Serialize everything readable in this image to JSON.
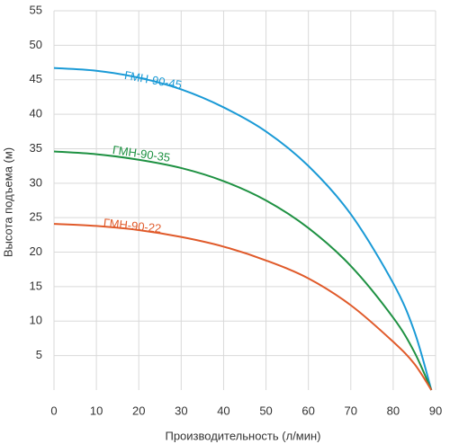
{
  "chart_data": {
    "type": "line",
    "x_label": "Производительность (л/мин)",
    "y_label": "Высота подъема (м)",
    "xlim": [
      0,
      90
    ],
    "xticks": [
      0,
      10,
      20,
      30,
      40,
      50,
      60,
      70,
      80,
      90
    ],
    "ylim": [
      0,
      55
    ],
    "yticks": [
      5,
      10,
      15,
      20,
      25,
      30,
      35,
      40,
      45,
      50,
      55
    ],
    "grid": true,
    "x": [
      0,
      10,
      20,
      30,
      40,
      50,
      60,
      70,
      80,
      85,
      89
    ],
    "series": [
      {
        "name": "ГМН-90-45",
        "color": "#1a9ad6",
        "values": [
          46.7,
          46.3,
          45.3,
          43.6,
          41,
          37.5,
          32.5,
          25.5,
          15.5,
          8.5,
          0
        ]
      },
      {
        "name": "ГМН-90-35",
        "color": "#1e9142",
        "values": [
          34.6,
          34.2,
          33.4,
          32.2,
          30.3,
          27.5,
          23.5,
          18,
          10.5,
          5.5,
          0
        ]
      },
      {
        "name": "ГМН-90-22",
        "color": "#e05a2a",
        "values": [
          24.1,
          23.8,
          23.2,
          22.2,
          20.8,
          18.8,
          16.2,
          12.3,
          7,
          3.8,
          0
        ]
      }
    ]
  }
}
